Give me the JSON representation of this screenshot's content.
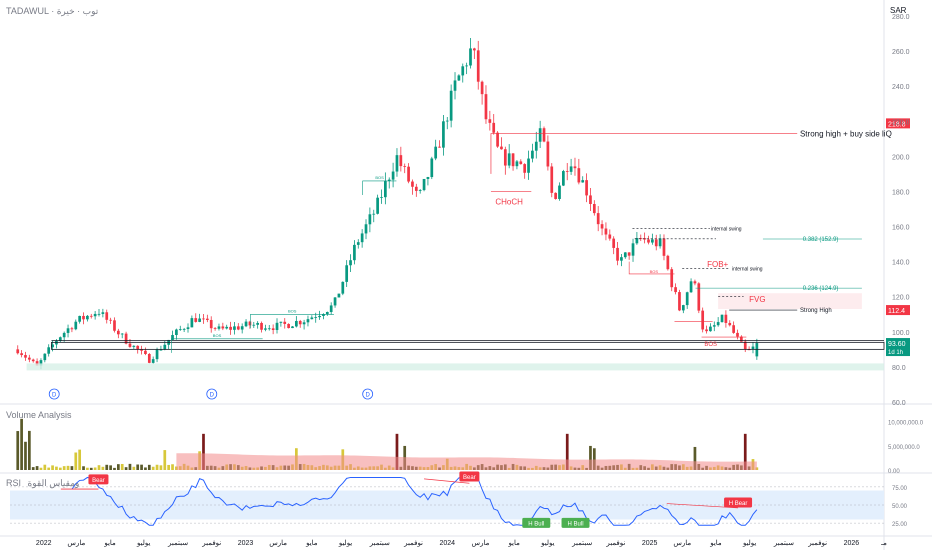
{
  "header": {
    "symbol": "TADAWUL",
    "name": "· توب · خيرة",
    "currency": "SAR"
  },
  "chart_data": [
    {
      "type": "candlestick",
      "x_range": [
        "2021-11",
        "2026-03"
      ],
      "ylim": [
        60,
        280
      ],
      "y_ticks": [
        "280.0",
        "260.0",
        "240.0",
        "220.0",
        "200.0",
        "180.0",
        "160.0",
        "140.0",
        "120.0",
        "100.0",
        "80.0",
        "60.0"
      ],
      "x_tick_labels": [
        "2022",
        "مارس",
        "مايو",
        "يوليو",
        "سبتمبر",
        "نوفمبر",
        "2023",
        "مارس",
        "مايو",
        "يوليو",
        "سبتمبر",
        "نوفمبر",
        "2024",
        "مارس",
        "مايو",
        "يوليو",
        "سبتمبر",
        "نوفمبر",
        "2025",
        "مارس",
        "مايو",
        "يوليو",
        "سبتمبر",
        "نوفمبر",
        "2026",
        "مـ"
      ],
      "anchors": [
        {
          "date": "2021-11-15",
          "close": 90
        },
        {
          "date": "2021-12-20",
          "close": 80
        },
        {
          "date": "2022-01-25",
          "close": 96
        },
        {
          "date": "2022-03-01",
          "close": 106
        },
        {
          "date": "2022-04-10",
          "close": 112
        },
        {
          "date": "2022-05-20",
          "close": 98
        },
        {
          "date": "2022-07-10",
          "close": 84
        },
        {
          "date": "2022-08-20",
          "close": 97
        },
        {
          "date": "2022-10-01",
          "close": 108
        },
        {
          "date": "2022-11-15",
          "close": 101
        },
        {
          "date": "2023-01-10",
          "close": 104
        },
        {
          "date": "2023-03-01",
          "close": 103
        },
        {
          "date": "2023-04-20",
          "close": 107
        },
        {
          "date": "2023-06-10",
          "close": 115
        },
        {
          "date": "2023-07-20",
          "close": 150
        },
        {
          "date": "2023-08-25",
          "close": 170
        },
        {
          "date": "2023-10-01",
          "close": 200
        },
        {
          "date": "2023-11-10",
          "close": 175
        },
        {
          "date": "2023-12-10",
          "close": 200
        },
        {
          "date": "2024-01-15",
          "close": 240
        },
        {
          "date": "2024-02-15",
          "close": 262
        },
        {
          "date": "2024-03-10",
          "close": 222
        },
        {
          "date": "2024-04-05",
          "close": 200
        },
        {
          "date": "2024-05-20",
          "close": 195
        },
        {
          "date": "2024-06-20",
          "close": 213
        },
        {
          "date": "2024-07-10",
          "close": 175
        },
        {
          "date": "2024-08-10",
          "close": 200
        },
        {
          "date": "2024-09-10",
          "close": 180
        },
        {
          "date": "2024-10-10",
          "close": 155
        },
        {
          "date": "2024-11-10",
          "close": 140
        },
        {
          "date": "2024-12-15",
          "close": 153
        },
        {
          "date": "2025-01-20",
          "close": 150
        },
        {
          "date": "2025-02-25",
          "close": 112
        },
        {
          "date": "2025-03-20",
          "close": 132
        },
        {
          "date": "2025-04-10",
          "close": 98
        },
        {
          "date": "2025-05-15",
          "close": 108
        },
        {
          "date": "2025-06-25",
          "close": 88
        },
        {
          "date": "2025-07-20",
          "close": 93.6
        }
      ],
      "price_labels": [
        {
          "value": 218.8,
          "text": "218.8",
          "color": "#f23645"
        },
        {
          "value": 112.4,
          "text": "112.4",
          "color": "#f23645"
        },
        {
          "value": 93.6,
          "text": "93.60",
          "sub": "1d 1h",
          "color": "#089981"
        }
      ],
      "annotations": {
        "strong_high_liquidity": "Strong high + buy side liQ",
        "choch": "CHoCH",
        "internal_swing_1": "internal swing",
        "internal_swing_2": "internal swing",
        "fib_0382": "0.382 (152.9)",
        "fib_0236": "0.236 (124.9)",
        "fob": "FOB+",
        "fvg": "FVG",
        "strong_high": "Strong High",
        "bos": "BOS",
        "bos_small_1": "BOS",
        "bos_small_2": "BOS",
        "bos_small_3": "BOS",
        "bos_small_4": "BOS",
        "dividend_marker": "D"
      },
      "fib_levels": [
        152.9,
        124.9
      ],
      "dividends": [
        "2022-01-20",
        "2022-11-01",
        "2023-08-10"
      ]
    },
    {
      "type": "bar",
      "title": "Volume Analysis",
      "y_ticks": [
        "10,000,000.0",
        "5,000,000.0",
        "0.00"
      ]
    },
    {
      "type": "line",
      "title": "RSI",
      "subtitle": "ومقياس القوة",
      "y_ticks": [
        "75.00",
        "50.00",
        "25.00"
      ],
      "ylim": [
        10,
        90
      ],
      "band": [
        30,
        70
      ],
      "markers": [
        {
          "text": "Bear",
          "kind": "bear"
        },
        {
          "text": "Bear",
          "kind": "bear"
        },
        {
          "text": "H Bull",
          "kind": "bull"
        },
        {
          "text": "H Bull",
          "kind": "bull"
        },
        {
          "text": "H Bear",
          "kind": "bear"
        }
      ]
    }
  ],
  "colors": {
    "up": "#089981",
    "down": "#f23645",
    "rsi": "#2962ff",
    "band": "#e3effd",
    "volume_up": "#d7c83a",
    "volume_down": "#7a1b1b",
    "volume_ma": "#f28b8b"
  }
}
